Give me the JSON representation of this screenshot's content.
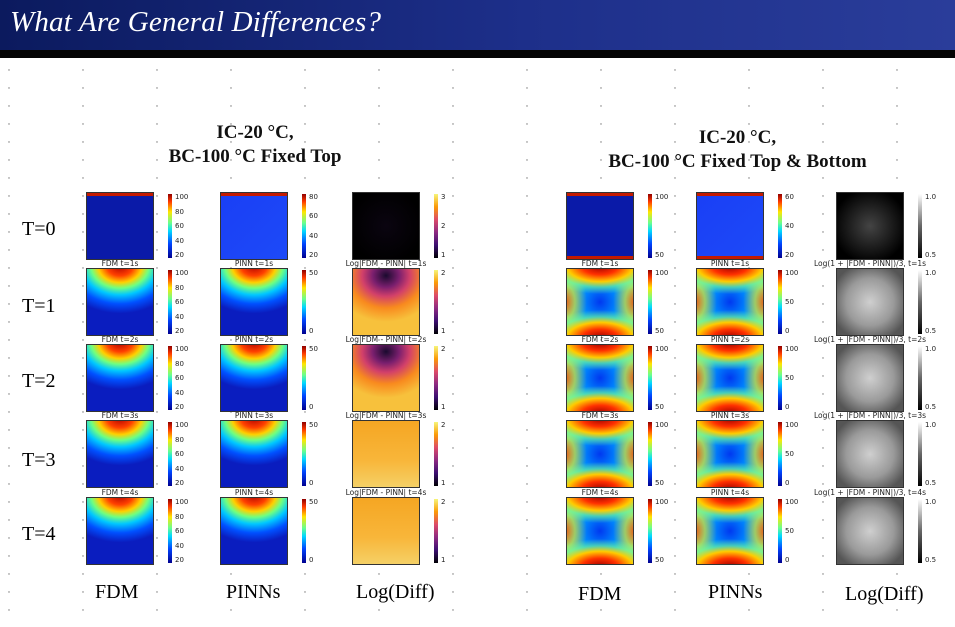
{
  "header": {
    "title": "What Are General Differences?"
  },
  "colors": {
    "banner": "#1d2f8a",
    "banner_text": "#ffffff",
    "divider": "#050505"
  },
  "left_group": {
    "title_line1": "IC-20 °C,",
    "title_line2": "BC-100 °C Fixed Top",
    "columns": [
      "FDM",
      "PINNs",
      "Log(Diff)"
    ],
    "panel_titles": {
      "fdm": [
        "",
        "FDM t=1s",
        "FDM t=2s",
        "FDM t=3s",
        "FDM t=4s"
      ],
      "pinn": [
        "",
        "PINN t=1s",
        "PINN t=2s",
        "PINN t=3s",
        "PINN t=4s"
      ],
      "diff": [
        "",
        "Log|FDM - PINN| t=1s",
        "Log|FDM - PINN| t=2s",
        "Log|FDM - PINN| t=3s",
        "Log|FDM - PINN| t=4s"
      ]
    },
    "colorbars": {
      "fdm": [
        "100",
        "80",
        "60",
        "40",
        "20"
      ],
      "pinn_t0": [
        "80",
        "60",
        "40",
        "20"
      ],
      "pinn": [
        "50",
        "0"
      ],
      "diff_t0": [
        "3",
        "2",
        "1"
      ],
      "diff": [
        "2",
        "1"
      ]
    }
  },
  "right_group": {
    "title_line1": "IC-20 °C,",
    "title_line2": "BC-100 °C Fixed Top & Bottom",
    "columns": [
      "FDM",
      "PINNs",
      "Log(Diff)"
    ],
    "panel_titles": {
      "fdm": [
        "",
        "FDM t=1s",
        "FDM t=2s",
        "FDM t=3s",
        "FDM t=4s"
      ],
      "pinn": [
        "",
        "PINN t=1s",
        "PINN t=2s",
        "PINN t=3s",
        "PINN t=4s"
      ],
      "diff": [
        "",
        "Log(1 + |FDM - PINN|)/3, t=1s",
        "Log(1 + |FDM - PINN|)/3, t=2s",
        "Log(1 + |FDM - PINN|)/3, t=3s",
        "Log(1 + |FDM - PINN|)/3, t=4s"
      ]
    },
    "colorbars": {
      "fdm": [
        "100",
        "50"
      ],
      "pinn_t0": [
        "60",
        "40",
        "20"
      ],
      "pinn": [
        "100",
        "50",
        "0"
      ],
      "diff": [
        "1.0",
        "0.5"
      ]
    }
  },
  "rows": [
    "T=0",
    "T=1",
    "T=2",
    "T=3",
    "T=4"
  ]
}
